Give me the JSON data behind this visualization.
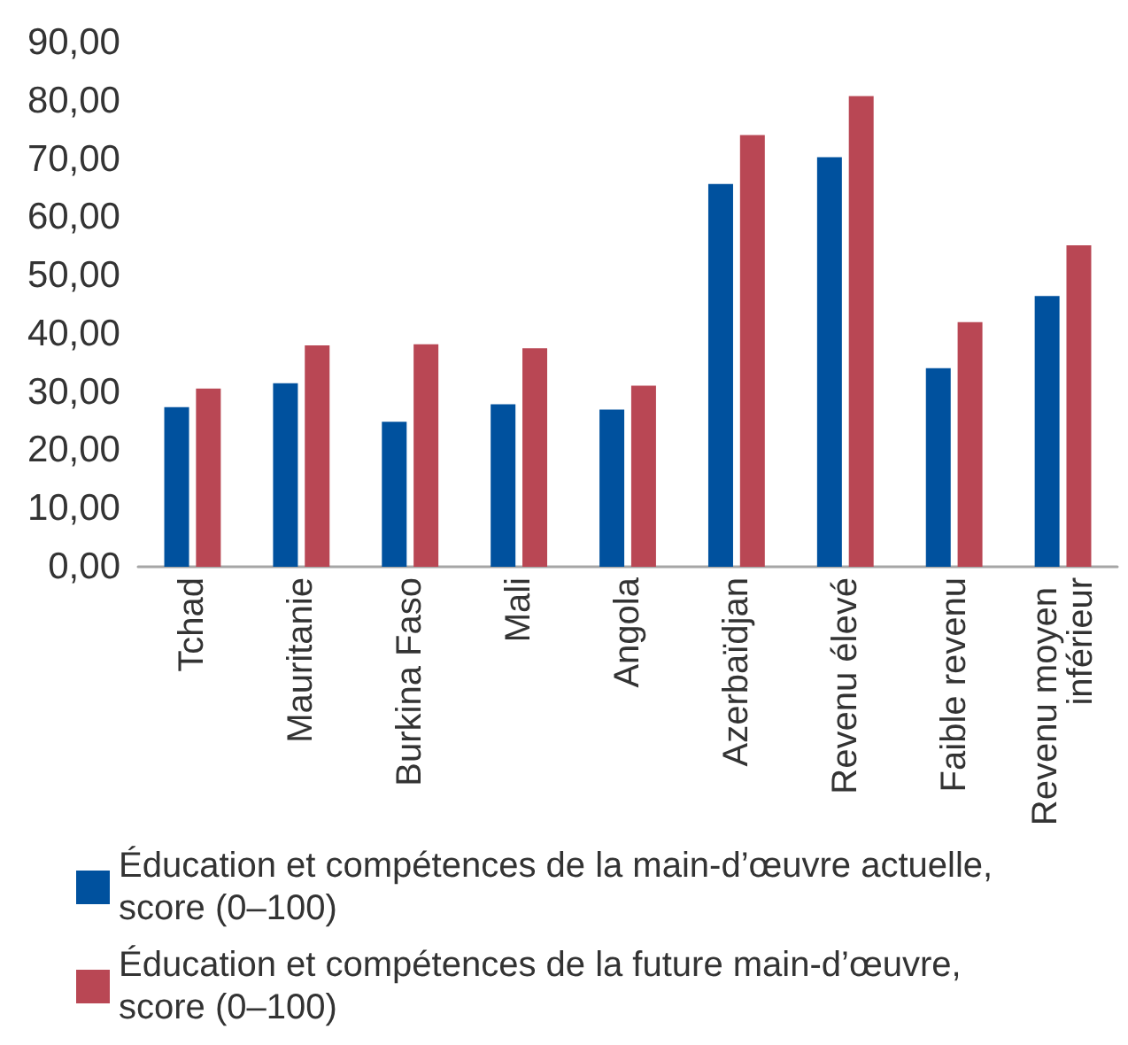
{
  "chart_data": {
    "type": "bar",
    "categories": [
      "Tchad",
      "Mauritanie",
      "Burkina Faso",
      "Mali",
      "Angola",
      "Azerbaïdjan",
      "Revenu élevé",
      "Faible revenu",
      "Revenu moyen inférieur"
    ],
    "series": [
      {
        "name": "Éducation et compétences de la main-d’œuvre actuelle, score (0–100)",
        "color": "#00519e",
        "values": [
          27.4,
          31.5,
          24.9,
          27.9,
          27.0,
          65.7,
          70.3,
          34.1,
          46.5
        ]
      },
      {
        "name": "Éducation et compétences de la future main-d’œuvre, score (0–100)",
        "color": "#b94754",
        "values": [
          30.6,
          38.0,
          38.2,
          37.5,
          31.1,
          74.1,
          80.8,
          42.0,
          55.2
        ]
      }
    ],
    "ylim": [
      0,
      90
    ],
    "yticks": [
      {
        "value": 0,
        "label": "0,00"
      },
      {
        "value": 10,
        "label": "10,00"
      },
      {
        "value": 20,
        "label": "20,00"
      },
      {
        "value": 30,
        "label": "30,00"
      },
      {
        "value": 40,
        "label": "40,00"
      },
      {
        "value": 50,
        "label": "50,00"
      },
      {
        "value": 60,
        "label": "60,00"
      },
      {
        "value": 70,
        "label": "70,00"
      },
      {
        "value": 80,
        "label": "80,00"
      },
      {
        "value": 90,
        "label": "90,00"
      }
    ],
    "grid": false,
    "legend": "bottom"
  }
}
